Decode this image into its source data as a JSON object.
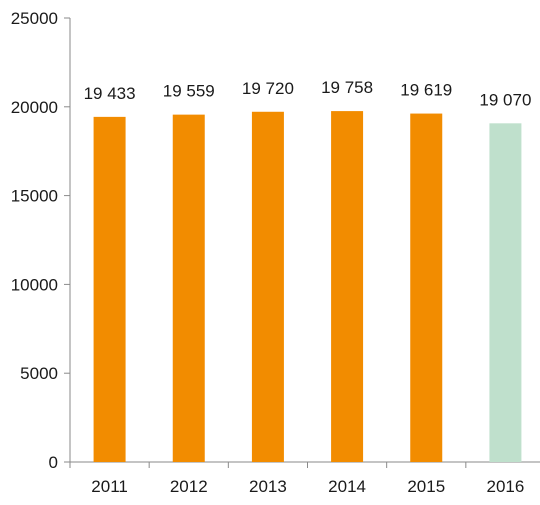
{
  "chart_data": {
    "type": "bar",
    "title": "",
    "xlabel": "",
    "ylabel": "",
    "categories": [
      "2011",
      "2012",
      "2013",
      "2014",
      "2015",
      "2016"
    ],
    "values": [
      19433,
      19559,
      19720,
      19758,
      19619,
      19070
    ],
    "data_labels": [
      "19 433",
      "19 559",
      "19 720",
      "19 758",
      "19 619",
      "19 070"
    ],
    "ylim": [
      0,
      25000
    ],
    "yticks": [
      0,
      5000,
      10000,
      15000,
      20000,
      25000
    ],
    "ytick_labels": [
      "0",
      "5000",
      "10000",
      "15000",
      "20000",
      "25000"
    ],
    "grid": false,
    "legend": "none",
    "colors": {
      "bar": "#f28c00",
      "highlight_bar": "#bfe0cc",
      "axis": "#8a8a8a"
    },
    "highlight_index": 5
  }
}
